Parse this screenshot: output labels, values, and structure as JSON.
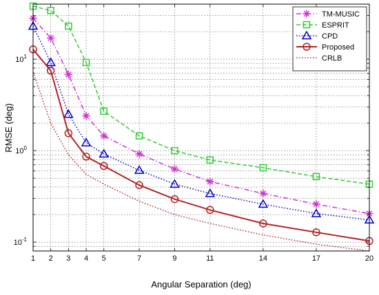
{
  "chart_data": {
    "type": "line",
    "xlabel": "Angular Separation (deg)",
    "ylabel": "RMSE (deg)",
    "x": [
      1,
      2,
      3,
      4,
      5,
      7,
      9,
      11,
      14,
      17,
      20
    ],
    "xlim": [
      1,
      20
    ],
    "ylim": [
      0.08,
      40
    ],
    "yscale": "log",
    "grid": true,
    "legend_position": "top-right",
    "x_tick_labels": [
      "1",
      "2",
      "3",
      "4",
      "5",
      "7",
      "9",
      "11",
      "14",
      "17",
      "20"
    ],
    "y_tick_labels": [
      {
        "value": 0.1,
        "base": "10",
        "exp": "-1"
      },
      {
        "value": 1,
        "base": "10",
        "exp": "0"
      },
      {
        "value": 10,
        "base": "10",
        "exp": "1"
      }
    ],
    "series": [
      {
        "name": "TM-MUSIC",
        "color": "#cc33cc",
        "line_style": "dashdot",
        "marker": "asterisk",
        "values": [
          28,
          17,
          6.8,
          2.4,
          1.45,
          0.92,
          0.63,
          0.46,
          0.34,
          0.26,
          0.205
        ]
      },
      {
        "name": "ESPRIT",
        "color": "#33cc33",
        "line_style": "dashed",
        "marker": "square",
        "values": [
          38,
          34,
          23,
          9.2,
          2.7,
          1.45,
          1.0,
          0.79,
          0.65,
          0.52,
          0.43
        ]
      },
      {
        "name": "CPD",
        "color": "#0000cc",
        "line_style": "dotted",
        "marker": "triangle",
        "values": [
          23,
          9.2,
          2.5,
          1.22,
          0.92,
          0.61,
          0.43,
          0.34,
          0.26,
          0.205,
          0.175
        ]
      },
      {
        "name": "Proposed",
        "color": "#b22222",
        "line_style": "solid",
        "marker": "circle",
        "values": [
          12.8,
          7.5,
          1.55,
          0.86,
          0.68,
          0.42,
          0.295,
          0.225,
          0.16,
          0.128,
          0.103
        ]
      },
      {
        "name": "CRLB",
        "color": "#b22222",
        "line_style": "dotted",
        "marker": "none",
        "values": [
          7.2,
          2.0,
          0.9,
          0.55,
          0.43,
          0.28,
          0.2,
          0.16,
          0.12,
          0.095,
          0.08
        ]
      }
    ]
  }
}
